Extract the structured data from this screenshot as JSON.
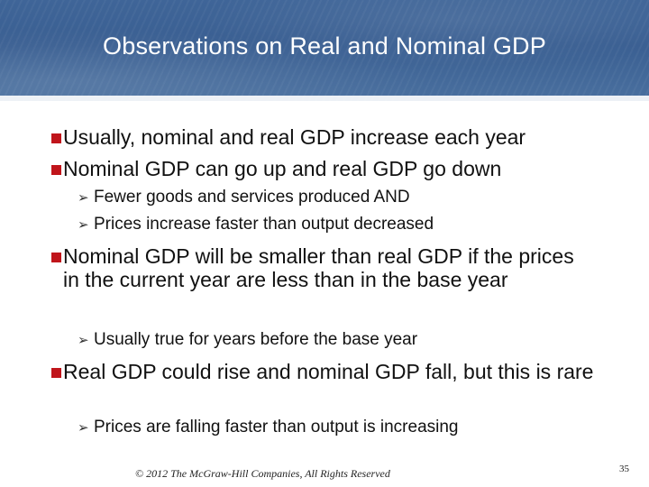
{
  "slide": {
    "title": "Observations on Real and Nominal GDP",
    "bullets": [
      {
        "text": "Usually, nominal and real GDP increase each year"
      },
      {
        "text": "Nominal GDP can go up and real GDP go down",
        "sub": [
          "Fewer goods and services produced AND",
          "Prices increase faster than output decreased"
        ]
      },
      {
        "text": "Nominal GDP will be smaller than real GDP if the prices in the current year are less than in the base year",
        "sub": [
          "Usually true for years before the base year"
        ]
      },
      {
        "text": "Real GDP could rise and nominal GDP fall, but this is rare",
        "sub": [
          "Prices are falling faster than output is increasing"
        ]
      }
    ],
    "footer": "© 2012 The McGraw-Hill Companies, All Rights Reserved",
    "page_number": "35"
  },
  "colors": {
    "header": "#3f6598",
    "bullet": "#c0151b"
  },
  "icons": {
    "bullet": "red-square-bullet-icon",
    "sub_bullet": "arrow-bullet-icon"
  }
}
